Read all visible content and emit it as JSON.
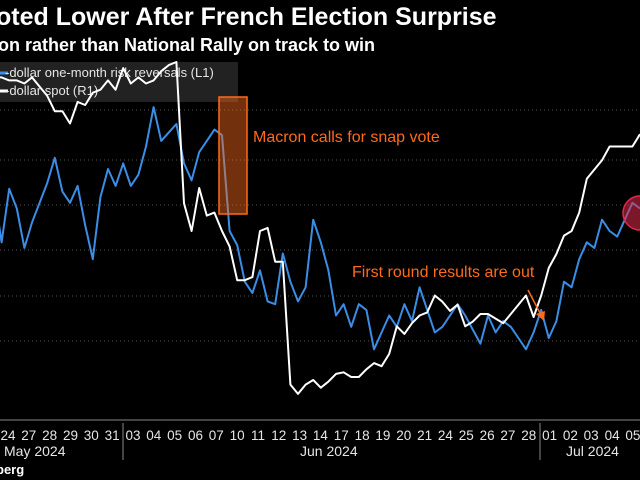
{
  "header": {
    "title": "oted Lower After French Election Surprise",
    "subtitle": "on rather than National Rally on track to win"
  },
  "source": "berg",
  "colors": {
    "series_l1": "#3a8ee6",
    "series_r1": "#ffffff",
    "annotation": "#ff6a1a",
    "highlight": "#e0294a"
  },
  "chart_data": {
    "type": "line",
    "x_ticks": [
      "24",
      "27",
      "28",
      "29",
      "30",
      "31",
      "03",
      "04",
      "05",
      "06",
      "07",
      "10",
      "11",
      "12",
      "13",
      "14",
      "17",
      "18",
      "19",
      "20",
      "21",
      "24",
      "25",
      "26",
      "27",
      "28",
      "01",
      "02",
      "03",
      "04",
      "05"
    ],
    "months": [
      "May 2024",
      "Jun 2024",
      "Jul 2024"
    ],
    "legend": [
      "-dollar one-month risk reversals (L1)",
      "-dollar spot (R1)"
    ],
    "annotations": [
      "Macron calls for snap vote",
      "First round results are out"
    ],
    "series": [
      {
        "name": "-dollar one-month risk reversals (L1)",
        "axis": "left",
        "values": [
          0.54,
          0.36,
          0.55,
          0.48,
          0.34,
          0.43,
          0.5,
          0.57,
          0.66,
          0.54,
          0.5,
          0.56,
          0.42,
          0.3,
          0.52,
          0.62,
          0.56,
          0.64,
          0.56,
          0.6,
          0.7,
          0.84,
          0.72,
          0.75,
          0.78,
          0.64,
          0.58,
          0.68,
          0.72,
          0.76,
          0.74,
          0.4,
          0.35,
          0.22,
          0.18,
          0.26,
          0.15,
          0.14,
          0.32,
          0.22,
          0.15,
          0.2,
          0.44,
          0.36,
          0.26,
          0.1,
          0.14,
          0.06,
          0.14,
          0.12,
          -0.02,
          0.04,
          0.1,
          0.06,
          0.14,
          0.08,
          0.2,
          0.12,
          0.04,
          0.06,
          0.1,
          0.14,
          0.1,
          0.05,
          0.0,
          0.1,
          0.04,
          0.08,
          0.06,
          0.02,
          -0.02,
          0.04,
          0.12,
          0.02,
          0.08,
          0.22,
          0.2,
          0.3,
          0.36,
          0.34,
          0.44,
          0.4,
          0.38,
          0.44,
          0.5,
          0.48
        ]
      },
      {
        "name": "-dollar spot (R1)",
        "axis": "right",
        "values": [
          1.086,
          1.086,
          1.0858,
          1.0858,
          1.0856,
          1.086,
          1.0854,
          1.0848,
          1.0838,
          1.0838,
          1.083,
          1.0844,
          1.0842,
          1.085,
          1.0852,
          1.0858,
          1.0852,
          1.0866,
          1.0856,
          1.086,
          1.0856,
          1.0858,
          1.0864,
          1.0868,
          1.087,
          1.0778,
          1.076,
          1.0788,
          1.077,
          1.0772,
          1.076,
          1.075,
          1.0728,
          1.0728,
          1.073,
          1.076,
          1.0762,
          1.074,
          1.074,
          1.066,
          1.0654,
          1.066,
          1.0663,
          1.0658,
          1.0662,
          1.0667,
          1.0668,
          1.0665,
          1.0665,
          1.067,
          1.0674,
          1.0672,
          1.068,
          1.0698,
          1.0693,
          1.07,
          1.0705,
          1.0707,
          1.0718,
          1.0714,
          1.0708,
          1.0712,
          1.0698,
          1.0701,
          1.0706,
          1.0706,
          1.0703,
          1.07,
          1.0706,
          1.0712,
          1.0718,
          1.0704,
          1.0718,
          1.0736,
          1.0745,
          1.0757,
          1.076,
          1.0772,
          1.0794,
          1.08,
          1.0806,
          1.0815,
          1.0815,
          1.0815,
          1.0815,
          1.0823
        ]
      }
    ],
    "left_axis_range": [
      -0.2,
      1.0
    ],
    "right_axis_range": [
      1.065,
      1.087
    ],
    "grid": true
  }
}
